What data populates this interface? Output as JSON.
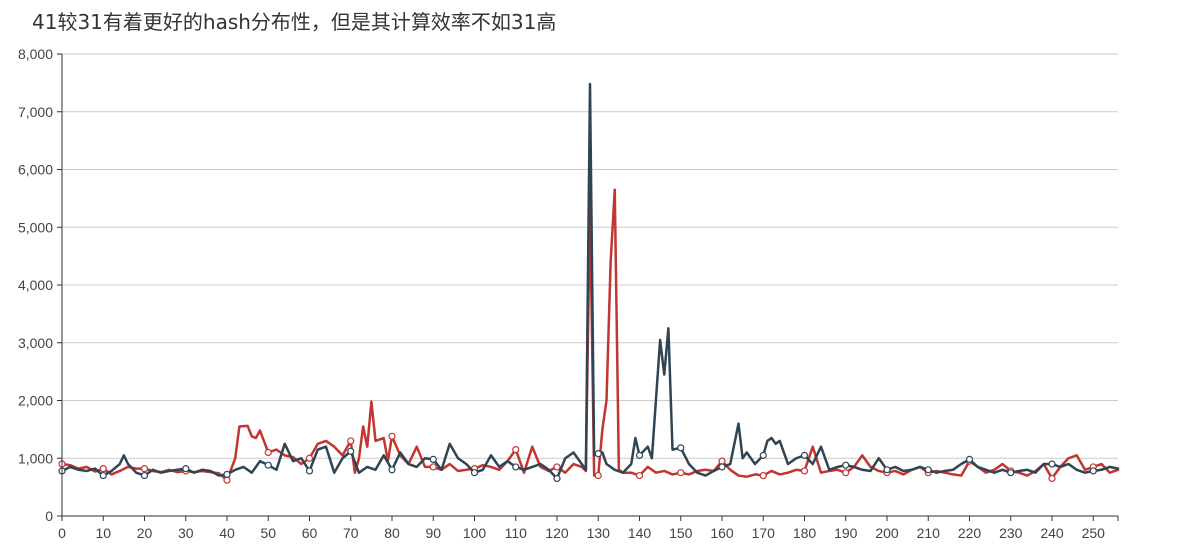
{
  "chart_data": {
    "type": "line",
    "title": "41较31有着更好的hash分布性，但是其计算效率不如31高",
    "xlabel": "",
    "ylabel": "",
    "xlim": [
      0,
      256
    ],
    "ylim": [
      0,
      8000
    ],
    "grid": true,
    "x_ticks": [
      0,
      10,
      20,
      30,
      40,
      50,
      60,
      70,
      80,
      90,
      100,
      110,
      120,
      130,
      140,
      150,
      160,
      170,
      180,
      190,
      200,
      210,
      220,
      230,
      240,
      250
    ],
    "x_tick_labels": [
      "0",
      "10",
      "20",
      "30",
      "40",
      "50",
      "60",
      "70",
      "80",
      "90",
      "100",
      "110",
      "120",
      "130",
      "140",
      "150",
      "160",
      "170",
      "180",
      "190",
      "200",
      "210",
      "220",
      "230",
      "240",
      "250"
    ],
    "y_ticks": [
      0,
      1000,
      2000,
      3000,
      4000,
      5000,
      6000,
      7000,
      8000
    ],
    "y_tick_labels": [
      "0",
      "1,000",
      "2,000",
      "3,000",
      "4,000",
      "5,000",
      "6,000",
      "7,000",
      "8,000"
    ],
    "series": [
      {
        "color": "#c23531",
        "marker_every": 10,
        "points": [
          [
            0,
            900
          ],
          [
            2,
            880
          ],
          [
            4,
            820
          ],
          [
            6,
            850
          ],
          [
            8,
            770
          ],
          [
            10,
            820
          ],
          [
            12,
            720
          ],
          [
            14,
            780
          ],
          [
            16,
            850
          ],
          [
            18,
            820
          ],
          [
            20,
            820
          ],
          [
            22,
            780
          ],
          [
            24,
            760
          ],
          [
            26,
            800
          ],
          [
            28,
            760
          ],
          [
            30,
            780
          ],
          [
            32,
            760
          ],
          [
            34,
            780
          ],
          [
            36,
            760
          ],
          [
            38,
            740
          ],
          [
            40,
            620
          ],
          [
            42,
            1000
          ],
          [
            43,
            1550
          ],
          [
            45,
            1560
          ],
          [
            46,
            1380
          ],
          [
            47,
            1350
          ],
          [
            48,
            1480
          ],
          [
            50,
            1100
          ],
          [
            52,
            1150
          ],
          [
            54,
            1050
          ],
          [
            56,
            1020
          ],
          [
            58,
            900
          ],
          [
            60,
            1000
          ],
          [
            62,
            1250
          ],
          [
            64,
            1300
          ],
          [
            66,
            1200
          ],
          [
            68,
            1050
          ],
          [
            70,
            1300
          ],
          [
            71,
            750
          ],
          [
            72,
            1000
          ],
          [
            73,
            1550
          ],
          [
            74,
            1200
          ],
          [
            75,
            1980
          ],
          [
            76,
            1300
          ],
          [
            78,
            1350
          ],
          [
            79,
            950
          ],
          [
            80,
            1380
          ],
          [
            82,
            1050
          ],
          [
            84,
            900
          ],
          [
            86,
            1200
          ],
          [
            88,
            850
          ],
          [
            90,
            850
          ],
          [
            92,
            800
          ],
          [
            94,
            900
          ],
          [
            96,
            780
          ],
          [
            98,
            800
          ],
          [
            100,
            820
          ],
          [
            102,
            880
          ],
          [
            104,
            850
          ],
          [
            106,
            800
          ],
          [
            108,
            950
          ],
          [
            110,
            1150
          ],
          [
            112,
            750
          ],
          [
            114,
            1200
          ],
          [
            116,
            850
          ],
          [
            118,
            780
          ],
          [
            120,
            850
          ],
          [
            122,
            750
          ],
          [
            124,
            900
          ],
          [
            126,
            850
          ],
          [
            127,
            780
          ],
          [
            128,
            5400
          ],
          [
            129,
            700
          ],
          [
            130,
            700
          ],
          [
            131,
            1500
          ],
          [
            132,
            2000
          ],
          [
            133,
            4400
          ],
          [
            134,
            5650
          ],
          [
            135,
            800
          ],
          [
            136,
            750
          ],
          [
            138,
            750
          ],
          [
            140,
            700
          ],
          [
            142,
            850
          ],
          [
            144,
            750
          ],
          [
            146,
            780
          ],
          [
            148,
            720
          ],
          [
            150,
            750
          ],
          [
            152,
            720
          ],
          [
            154,
            780
          ],
          [
            156,
            800
          ],
          [
            158,
            780
          ],
          [
            160,
            950
          ],
          [
            162,
            800
          ],
          [
            164,
            700
          ],
          [
            166,
            680
          ],
          [
            168,
            720
          ],
          [
            170,
            700
          ],
          [
            172,
            780
          ],
          [
            174,
            720
          ],
          [
            176,
            750
          ],
          [
            178,
            800
          ],
          [
            180,
            780
          ],
          [
            182,
            1200
          ],
          [
            184,
            750
          ],
          [
            186,
            780
          ],
          [
            188,
            800
          ],
          [
            190,
            750
          ],
          [
            192,
            850
          ],
          [
            194,
            1050
          ],
          [
            196,
            850
          ],
          [
            198,
            780
          ],
          [
            200,
            750
          ],
          [
            202,
            780
          ],
          [
            204,
            720
          ],
          [
            206,
            800
          ],
          [
            208,
            850
          ],
          [
            210,
            750
          ],
          [
            212,
            780
          ],
          [
            214,
            750
          ],
          [
            216,
            720
          ],
          [
            218,
            700
          ],
          [
            220,
            950
          ],
          [
            222,
            850
          ],
          [
            224,
            750
          ],
          [
            226,
            800
          ],
          [
            228,
            900
          ],
          [
            230,
            780
          ],
          [
            232,
            750
          ],
          [
            234,
            700
          ],
          [
            236,
            780
          ],
          [
            238,
            900
          ],
          [
            240,
            650
          ],
          [
            242,
            850
          ],
          [
            244,
            1000
          ],
          [
            246,
            1050
          ],
          [
            248,
            800
          ],
          [
            250,
            850
          ],
          [
            252,
            900
          ],
          [
            254,
            750
          ],
          [
            256,
            800
          ]
        ]
      },
      {
        "color": "#2f4554",
        "marker_every": 10,
        "points": [
          [
            0,
            780
          ],
          [
            2,
            850
          ],
          [
            4,
            800
          ],
          [
            6,
            780
          ],
          [
            8,
            820
          ],
          [
            10,
            700
          ],
          [
            12,
            780
          ],
          [
            14,
            900
          ],
          [
            15,
            1050
          ],
          [
            16,
            900
          ],
          [
            18,
            750
          ],
          [
            20,
            700
          ],
          [
            22,
            800
          ],
          [
            24,
            750
          ],
          [
            26,
            780
          ],
          [
            28,
            800
          ],
          [
            30,
            820
          ],
          [
            32,
            750
          ],
          [
            34,
            800
          ],
          [
            36,
            780
          ],
          [
            38,
            700
          ],
          [
            40,
            720
          ],
          [
            42,
            800
          ],
          [
            44,
            850
          ],
          [
            46,
            750
          ],
          [
            48,
            950
          ],
          [
            50,
            880
          ],
          [
            52,
            800
          ],
          [
            54,
            1250
          ],
          [
            56,
            950
          ],
          [
            58,
            1000
          ],
          [
            60,
            780
          ],
          [
            62,
            1150
          ],
          [
            64,
            1200
          ],
          [
            66,
            750
          ],
          [
            68,
            1000
          ],
          [
            70,
            1120
          ],
          [
            72,
            750
          ],
          [
            74,
            850
          ],
          [
            76,
            800
          ],
          [
            78,
            1050
          ],
          [
            80,
            800
          ],
          [
            82,
            1100
          ],
          [
            84,
            900
          ],
          [
            86,
            850
          ],
          [
            88,
            1000
          ],
          [
            90,
            980
          ],
          [
            92,
            800
          ],
          [
            94,
            1250
          ],
          [
            96,
            1000
          ],
          [
            98,
            900
          ],
          [
            100,
            750
          ],
          [
            102,
            800
          ],
          [
            104,
            1050
          ],
          [
            106,
            850
          ],
          [
            108,
            950
          ],
          [
            110,
            850
          ],
          [
            112,
            800
          ],
          [
            114,
            850
          ],
          [
            116,
            900
          ],
          [
            118,
            800
          ],
          [
            120,
            650
          ],
          [
            122,
            1000
          ],
          [
            124,
            1100
          ],
          [
            126,
            900
          ],
          [
            127,
            800
          ],
          [
            128,
            7480
          ],
          [
            129,
            1050
          ],
          [
            130,
            1080
          ],
          [
            131,
            1100
          ],
          [
            132,
            900
          ],
          [
            134,
            800
          ],
          [
            136,
            750
          ],
          [
            138,
            900
          ],
          [
            139,
            1350
          ],
          [
            140,
            1050
          ],
          [
            142,
            1200
          ],
          [
            143,
            1000
          ],
          [
            145,
            3050
          ],
          [
            146,
            2450
          ],
          [
            147,
            3250
          ],
          [
            148,
            1150
          ],
          [
            150,
            1180
          ],
          [
            152,
            900
          ],
          [
            154,
            750
          ],
          [
            156,
            700
          ],
          [
            158,
            780
          ],
          [
            160,
            850
          ],
          [
            162,
            900
          ],
          [
            164,
            1600
          ],
          [
            165,
            1000
          ],
          [
            166,
            1100
          ],
          [
            168,
            900
          ],
          [
            170,
            1050
          ],
          [
            171,
            1300
          ],
          [
            172,
            1350
          ],
          [
            173,
            1250
          ],
          [
            174,
            1300
          ],
          [
            176,
            900
          ],
          [
            178,
            1000
          ],
          [
            180,
            1050
          ],
          [
            182,
            900
          ],
          [
            184,
            1200
          ],
          [
            186,
            800
          ],
          [
            188,
            850
          ],
          [
            190,
            880
          ],
          [
            192,
            850
          ],
          [
            194,
            800
          ],
          [
            196,
            780
          ],
          [
            198,
            1000
          ],
          [
            200,
            800
          ],
          [
            202,
            850
          ],
          [
            204,
            780
          ],
          [
            206,
            800
          ],
          [
            208,
            850
          ],
          [
            210,
            800
          ],
          [
            212,
            750
          ],
          [
            214,
            780
          ],
          [
            216,
            800
          ],
          [
            218,
            900
          ],
          [
            220,
            980
          ],
          [
            222,
            850
          ],
          [
            224,
            800
          ],
          [
            226,
            750
          ],
          [
            228,
            800
          ],
          [
            230,
            750
          ],
          [
            232,
            780
          ],
          [
            234,
            800
          ],
          [
            236,
            750
          ],
          [
            238,
            900
          ],
          [
            240,
            900
          ],
          [
            242,
            850
          ],
          [
            244,
            900
          ],
          [
            246,
            800
          ],
          [
            248,
            750
          ],
          [
            250,
            780
          ],
          [
            252,
            800
          ],
          [
            254,
            850
          ],
          [
            256,
            820
          ]
        ]
      }
    ]
  }
}
